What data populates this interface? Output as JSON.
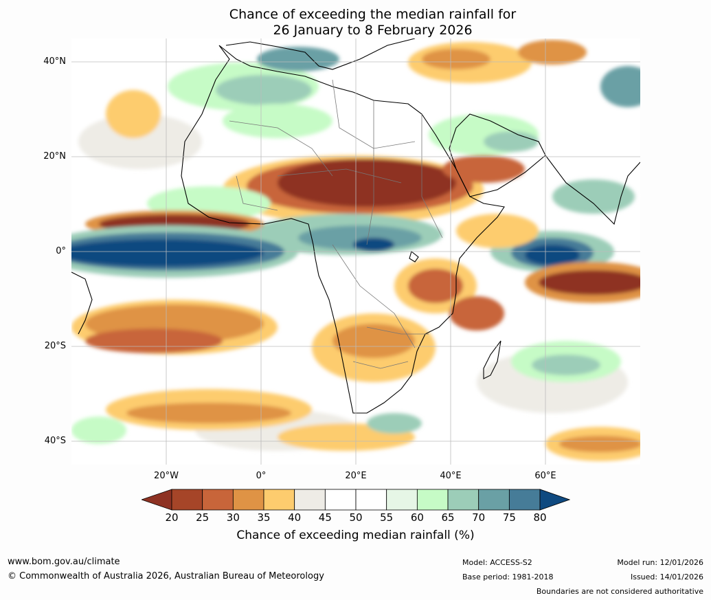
{
  "title": {
    "line1": "Chance of exceeding the median rainfall for",
    "line2": "26 January to 8 February 2026"
  },
  "map": {
    "description_region": "Africa and surrounding oceans",
    "lat_labels": [
      "40°N",
      "20°N",
      "0°",
      "20°S",
      "40°S"
    ],
    "lon_labels": [
      "20°W",
      "0°",
      "20°E",
      "40°E",
      "60°E"
    ],
    "lat_values": [
      40,
      20,
      0,
      -20,
      -40
    ],
    "lon_values": [
      -20,
      0,
      20,
      40,
      60
    ],
    "extent": {
      "lon_min": -40,
      "lon_max": 80,
      "lat_min": -45,
      "lat_max": 45
    }
  },
  "colorbar": {
    "ticks": [
      "20",
      "25",
      "30",
      "35",
      "40",
      "45",
      "50",
      "55",
      "60",
      "65",
      "70",
      "75",
      "80"
    ],
    "colors": [
      "#a64528",
      "#c8653a",
      "#df9345",
      "#fdcc6e",
      "#eeece6",
      "#ffffff",
      "#ffffff",
      "#e6f6e6",
      "#c6fbc6",
      "#9ccdb8",
      "#6aa0a5",
      "#467c98"
    ],
    "below_color": "#8e3223",
    "above_color": "#0f4a80",
    "label": "Chance of exceeding median rainfall (%)"
  },
  "footer": {
    "website": "www.bom.gov.au/climate",
    "copyright": "© Commonwealth of Australia 2026, Australian Bureau of Meteorology",
    "model": "Model: ACCESS-S2",
    "base_period": "Base period: 1981-2018",
    "model_run": "Model run: 12/01/2026",
    "issued": "Issued: 14/01/2026",
    "disclaimer": "Boundaries are not considered authoritative"
  }
}
